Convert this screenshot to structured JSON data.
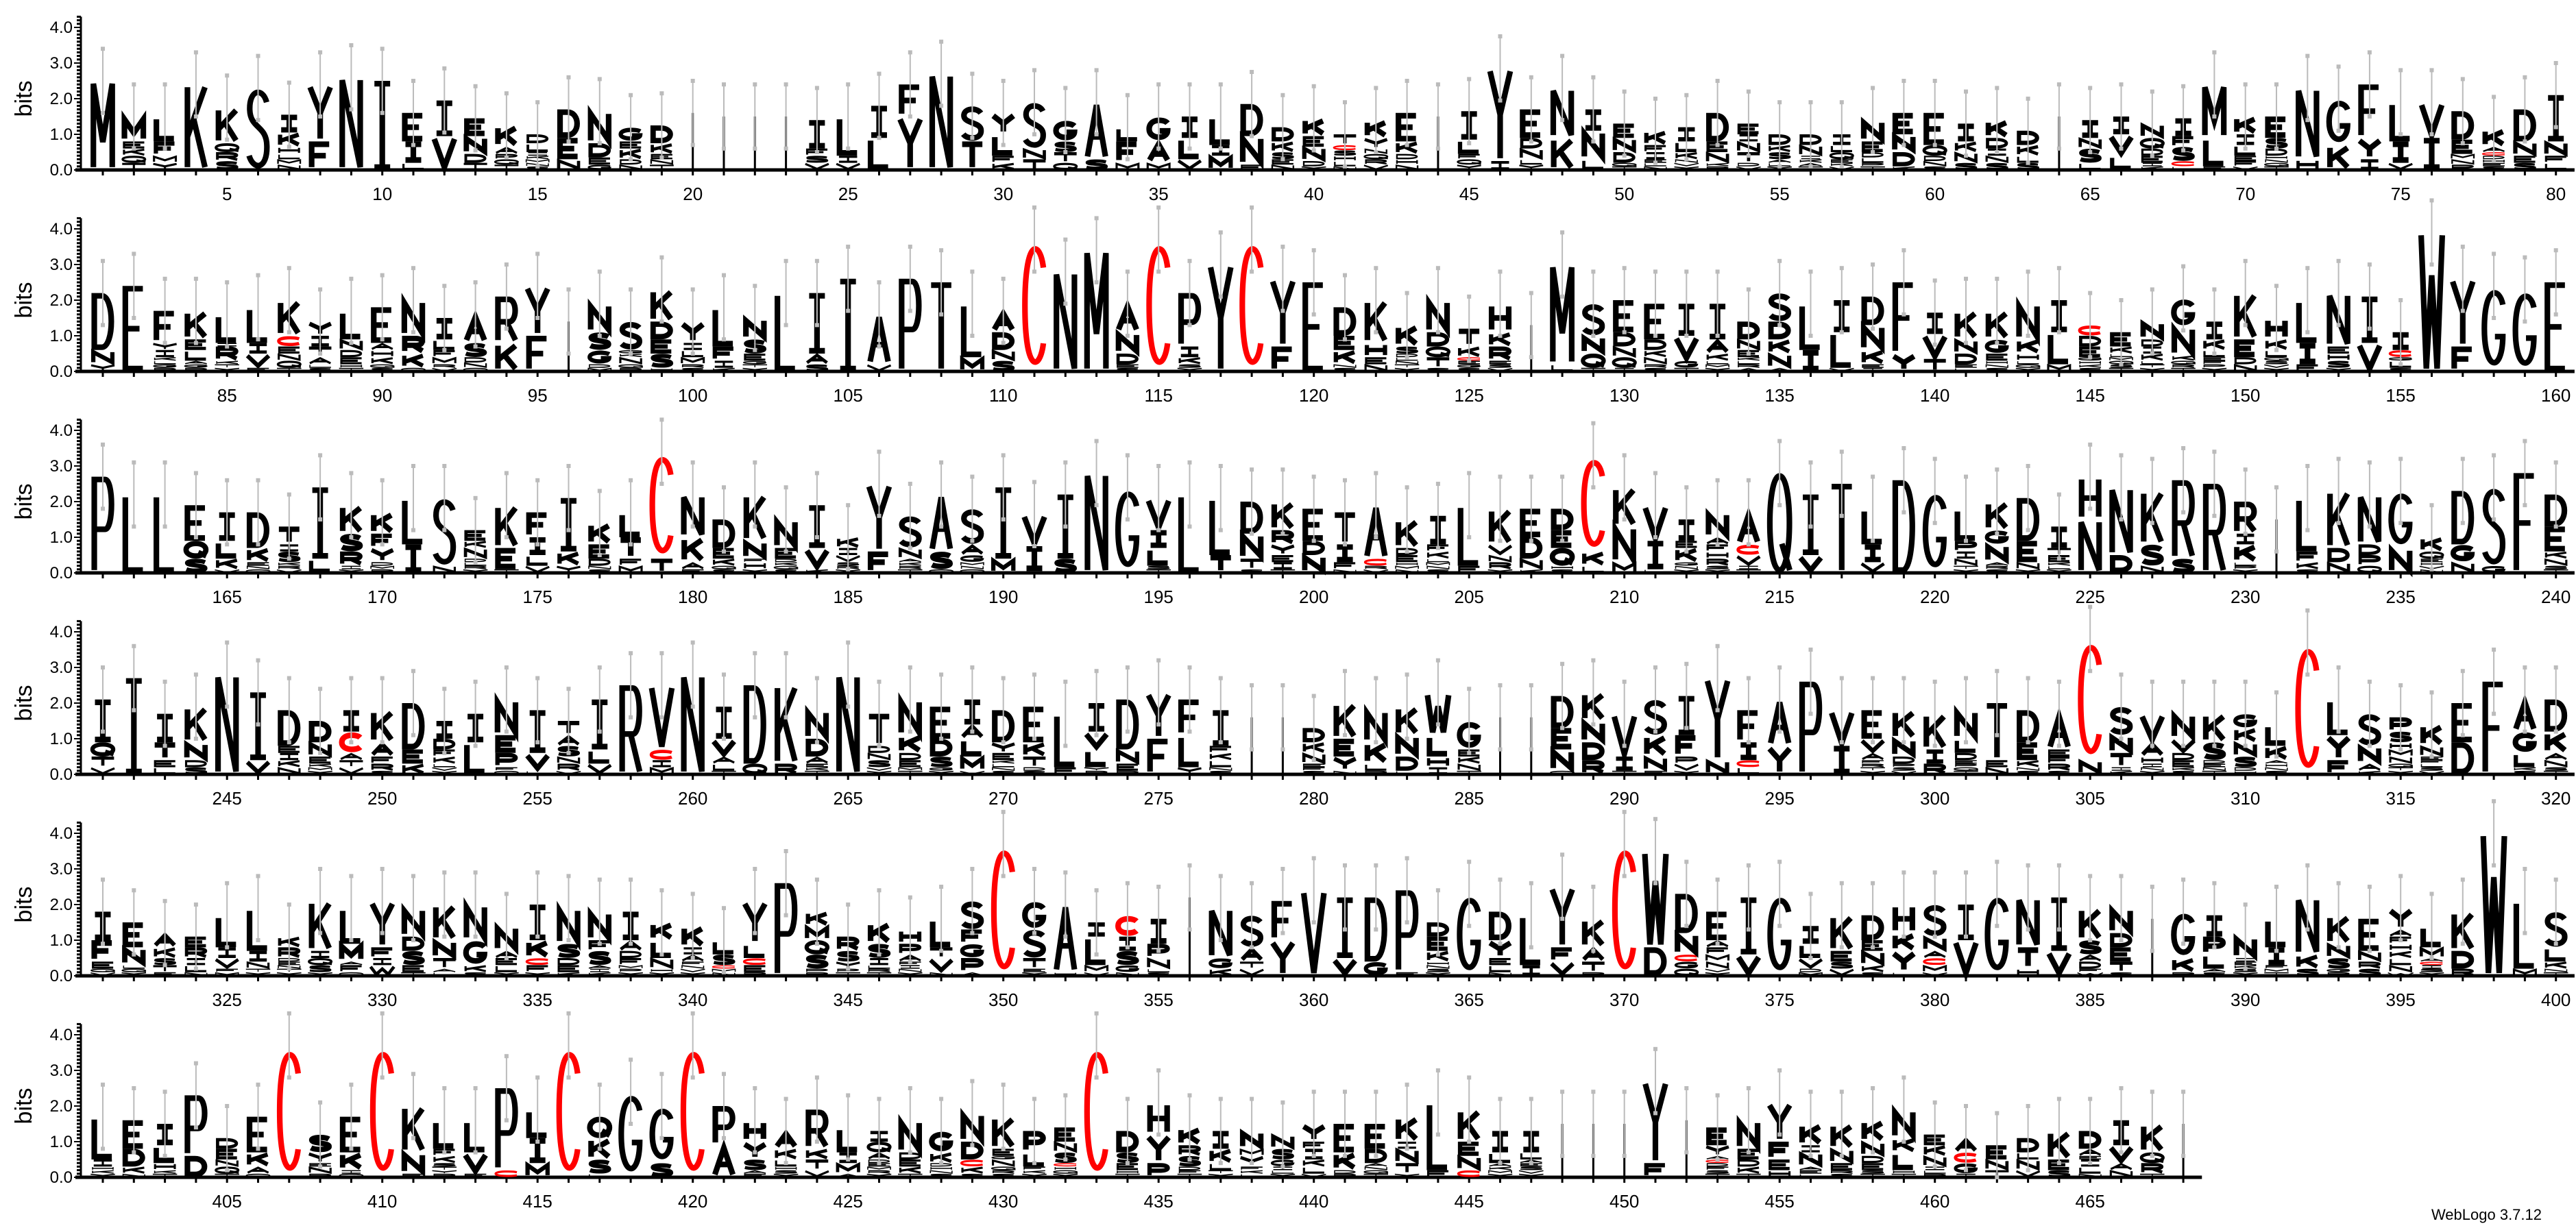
{
  "chart_data": {
    "type": "sequence-logo",
    "ylabel": "bits",
    "ylim": [
      0,
      4.3
    ],
    "yticks": [
      "0.0",
      "1.0",
      "2.0",
      "3.0",
      "4.0"
    ],
    "xtick_interval": 5,
    "colors": {
      "C": "#ff0000",
      "default": "#000000",
      "error_bar": "#bbbbbb"
    },
    "rows": [
      {
        "start": 1,
        "stacks": [
          "M2.5",
          "M.7 E.2 K.2 Q.2 T.2",
          "L.7 F.4 M.2 Y.2",
          "K2.4",
          "K1 Q.25 R.25 S.25",
          "S2.3",
          "I.5 K.4 H.2 L.15 M.15 N.15",
          "Y1.6 F.8",
          "N2.6",
          "I2.5",
          "E.8 I.6 L.2",
          "I1 V.95",
          "E.5 N.5 D.25 T.2",
          "K.6 A.2 P.15 Q.15 T.15",
          "D.25 L.25 I.1 K.1 M.1 N.1 S.1",
          "D.8 E.6 N.3",
          "N.9 D.4 E.2 G.15",
          "G.4 E.2 K.3 D.15 N.15",
          "D.5 K.3 E.15 N.15 T.15",
          "|1.6",
          "|1.5",
          "|1.5",
          "|1.5",
          "I.8 F.2 S.2 V.2",
          "L1.1 I.2 V.2",
          "I.9 L.9",
          "F.9 Y1.5",
          "N2.7",
          "S1 T.8",
          "Y.6 L.6 F.2 K.2",
          "S1.3 N.3 T.3",
          "G.6 S.3 T.3 Q.2",
          "A1.6 S.3",
          "L.4 F.6 M.2",
          "G.7 A.6 M.2",
          "I.6 L.6 V.3",
          "L.8 I.3 M.4",
          "D.9 N.8 E.15",
          "D.4 K.3 S.2 E.15 N.15",
          "K.5 E.3 N.4 D.15 Y.1",
          "T.3 C.15 S.15 H.15 L.15 N.1",
          "K.5 Y.3 N.15 Q.15 R.15 V.15",
          "E.8 K.35 D.15 H.15 N.15",
          "|1.5",
          "I.8 L.4 F.15 Q.15 Y.15",
          "Y2.6 I.25",
          "E.8 D.3 N.3 L.15 Y.15",
          "N1.4 K.9",
          "I.6 N.8 L.3",
          "E.4 N.4 D.3 Q.1 T.1",
          "K.4 F.2 I.2 E.1 L.1 N.1",
          "I.4 L.3 K.2 N.1 V.1 Y.1",
          "D.8 E.3 N.3 K.1 P.1",
          "E.3 I.2 N.3 T.3 D.1 V.1",
          "D.3 K.2 S.2 A.1 L.1 Y.1",
          "D.3 N.3 I.1 K.1 A.1 T.1",
          "I.3 L.2 Q.2 E.1 K.1 V.1",
          "N.6 E.3 D.15 L.15 P.1 T.1",
          "E.6 N.5 D.4 K.1",
          "E.9 Q.3 D.15 N.15 S.1",
          "I.5 K.3 N.3 S.2",
          "K.5 D.3 I.2 N.2 S.2",
          "D.4 K.3 L.2 S.2",
          "|1.5",
          "I.5 N.3 S.4 L.2",
          "I.5 V.6 L.4",
          "N.4 Q.3 D.2 E.2 I.1 K.1",
          "I.5 F.3 S.4 C.15 L.1",
          "M1.5 L.8 F.1",
          "K.5 I.3 L.3 E.15 F.15 V.1",
          "E.6 S.3 D.2 H.1 N.1 Q.1 T.1",
          "N2 H.3",
          "G1.3 K.7",
          "F1.5 Y.6 I.3",
          "L1.1 I.6 V.2",
          "V1 I.9",
          "D.8 E.4 M.15 N.15 P.15",
          "K.5 A.15 C.1 D.1 H.1 E.1 S.1",
          "D.9 N.4 E.2 S.2",
          "I1.3 N.4 F.2 L.2"
        ]
      },
      {
        "start": 81,
        "stacks": [
          "D1.6 N.4 Y.2",
          "E2.4",
          "F.9 Y.2 I.2 K.1 L.1 G.1 R.1",
          "K.8 E.3 L.3 A.1 G.1 R.1",
          "L.8 I.1 R.4 K.1 T.1 Y.1",
          "L1 I.3 V.4 E.1",
          "K1 C.3 E.2 N.2 Q.2 T.1",
          "Y.4 I.3 T.3 A.2 L.1 S.1",
          "L.8 N.3 D.2 E.2 H.1 T.1",
          "E1 A.2 H.2 K.2 Q.1 S.1",
          "N1 R.5 K.4 Q.1",
          "I.6 L.3 F.2 M.2 R.1 V.1",
          "A.8 S.4 D.15 N.15 Q.1",
          "R1.3 K.8",
          "Y1.4 F1",
          "|1.4",
          "N.8 S.5 G.4 D.1 M.1",
          "S.8 G.1 K.1 N.2 Q.1 R.1",
          "K.9 D.5 E.4 S.4 H.1",
          "Y.6 I.2 L.2 M.2 R.1 S.1",
          "L1.1 F.4 I.2 K.1",
          "N.6 S.4 E.2 G.1 T.1 Y.1",
          "L2.2",
          "I1.7 A.3 S.2",
          "I2.6",
          "A1.4 V.2",
          "P2.6",
          "T2.5",
          "L1.5 M.4",
          "A.6 D.5 N.3 S.3",
          "C3.7",
          "N2.8",
          "M3.4",
          "A.8 N.6 D.3 E.1 S.1",
          "C3.7",
          "P1.5 I.3 K.2 S.1 Y.1",
          "Y3",
          "C3.7",
          "Y1.9 F.7",
          "E2.5",
          "D.8 E.4 K.4 N.1 S.1",
          "K1.2 H.4 E.2 N.2",
          "K.6 S.2 D.1 L.1 N.1 T.1 Y.1",
          "N.9 D.4 Q.3 T.3 S.1",
          "T.5 K.3 C.1 E.1 G.1 S.1",
          "H.8 K.4 R.4 E.1 S.1 V.1",
          "|1.3",
          "M2.8 L.2",
          "S.9 N.5 Q.4 T.1",
          "E.9 D.4 N.3 Q.3 I.1",
          "E1 D.3 K.2 N.2 R.1 S.1",
          "I.9 V.7 G.2 T.1",
          "I1 A.4 K.2 L.1 M.1 Y.1",
          "D.5 N.3 E.2 K.1 L.1 R.1 A.1",
          "S.8 D.5 K.4 N.4 A.1",
          "L1.3 I.6",
          "I.9 L1 V.1",
          "D.8 N.7 K.4 E.1 I.1",
          "F2 Y.5",
          "I.6 V.7 T.35",
          "K.8 N.4 D.3 E.1 L.1",
          "K.8 G.4 E.2 H.1 N.1 S.1",
          "N1 K.4 H.2 L.1 Q.1 Y.1",
          "I.9 L.9 M.2",
          "C.3 D.3 E.3 G.1 H.1 K.1 S.1",
          "E.4 K.2 L.1 M.1 Q.1 S.1 T.1",
          "N.5 D.2 I.2 K.2 L.1 T.1 Y.1",
          "G.8 N.8 K.15 Q.1 R.1 T.1",
          "I.5 K.3 L.2 E.1 F.1 P.1 Y.1",
          "K1.3 E.5 D.2 N.2",
          "H.6 K.3 L.2 Q.1 S.1 V.1 Y.1",
          "L1.2 I.6 F.2",
          "N1.5 E.2 H.2 S.2 Y.1",
          "I1.3 V.8",
          "I.5 C.2 G.1 L.2 S.1",
          "W3.9",
          "Y1.9 F.7",
          "G2.4",
          "G2.3",
          "E2.5"
        ]
      },
      {
        "start": 161,
        "stacks": [
          "P2.7",
          "L2.2",
          "L2.2",
          "E1 Q.5 S.4",
          "I.8 L.5 K.3 V.1",
          "D1 K.4 E.1 N.1 Q.1",
          "T.5 I.2 S.3 K.1 R.1 V.1",
          "I2 L.4",
          "K.8 S.5 R.4 I.1 Y.1",
          "K.6 F.4 Y.4 D.1 M.1 R.1",
          "L1.3 I.8",
          "S1.9 N.2",
          "E.3 K.2 N.3 D.1 L.1 R.1 Y.1",
          "K1.2 E.6 T.1",
          "F.7 I.5 L.3 V.2",
          "I1.5 K.4 Y.2",
          "K.6 E.4 D.2 N.1 S.1",
          "L.7 T.6 F.2 M.2",
          "C3 T.4",
          "N1.2 K.7 A.2 E.1",
          "D.8 E.3 K.2 Q.1 S.1",
          "K1.3 N.5 F.1 H.2 Y.1",
          "N.8 E.3 D.1 K.1 Q.1 S.1",
          "I1.2 V.6 K.1",
          "K.3 I.2 V.2 S.1 R.1 Y.1",
          "Y1.9 F.6",
          "S.9 N.3 A.1 K.1 R.1 T.1",
          "A1.6 S.5 Q.1",
          "S1 A.3 G.2 M.1 N.1 Q.1",
          "I2 M.4",
          "V.9 I.7 L.05",
          "I1.8 S.4",
          "N2.8",
          "G2.4",
          "V.9 I.5 L.5 S.1 T.1",
          "L2.2",
          "L1.6 T.5",
          "D.9 N.7 T.3 S.1",
          "K.8 R.4 Y.3 E.2 I.2 T.1",
          "E.9 D.4 N.5",
          "T.9 I.5 F.2 N.1",
          "A1.5 C.2 R.1 V.1",
          "K.8 D.2 E.2 H.1 M.1 N.1",
          "I.8 F.2 K.2 L.1 M.1 N.1 S.1",
          "L1.7 F.2",
          "K1 V.3 N.2 R.2 Y.1",
          "E.8 D.6 N.3 K.1",
          "D.6 E.5 Q.5 H.1 S.1",
          "C2.7 K.4 L.2",
          "K1.1 N1 M.3",
          "V1 I.8 L.1",
          "I.6 E.2 K.4 G.1 N.1 Y.1",
          "N.7 A.2 F.2 H.2 R.2 S.1 Y.1",
          "A.9 C.3 V.3 I.1 T.1",
          "Q2.8",
          "I1.7 V.5",
          "T2.5",
          "L1 I.5 V.3",
          "D2.6",
          "G2.3",
          "L.9 P.3 I.2 N.2 T.1 Y.1",
          "K.8 G.4 N.5 A.1 R.1 S.1",
          "D1.2 E.6 N.2 Y.1",
          "I.6 T.2 E.2 K.1 L.1 Y.1",
          "H1.2 N1.5",
          "N1.9 D.5",
          "K1.5 S.6 N.2",
          "R2.2 S.4",
          "R2.5",
          "R.9 I.3 K.5 L.1 P.1 Y.1",
          "|1.5",
          "L1.5 F.3 K.2 S.1",
          "K1.6 D.4 N.3",
          "N1.4 D.3 P.3 Q.2",
          "G1.6 N.7",
          "K.4 Q.2 E.1 H.1 V.1 N.1",
          "D1.5 G.5 N.3",
          "S2.2 G.2",
          "F2.8",
          "D.9 E.7 K.2 N.2 S.1 T.1"
        ]
      },
      {
        "start": 241,
        "stacks": [
          "I1.2 Q.4 T.3 V.2",
          "I2.7",
          "I.8 T.5 E.2 L.2",
          "K1 N.5 D.2 S.2",
          "N2.8",
          "I1.9 V.4",
          "D1 E.2 I.2 K.2 N.2",
          "D.6 N.4 E.2 K.1 M.1 Y.1",
          "I.6 C.6 A.2 T.2 V.2",
          "K.9 A.4 F.2 R.2 S.1",
          "D1.3 E.4 K.3",
          "I.5 D.3 F.2 K.2 L.1 V.1 Y.1",
          "I.8 L.9",
          "N1 E.5 P.4 F.1 Q.1",
          "I1.2 V.5 L.1",
          "T.4 A.3 S.3 N.2 R.2 V.1",
          "I1.4 L.4 V.3",
          "R2.5",
          "V1.8 C.3 I.2 M.2",
          "N2.8",
          "I.9 V.5 A.2 L.2 T.1",
          "D2.2 Q.3",
          "K2.2 R.3",
          "N.8 D.5 A.2 E.1 K.1 T.1",
          "N2.8",
          "T.9 D.2 N.2 S.2 V.1 Y.1",
          "N1 K.5 D.2 E.2 M.1 T.1",
          "E.9 D.5 S.3 G.1 Y.1",
          "I.7 A.4 L.5 M.4 V.1",
          "D.9 Y.3 E.2 K.1 L.1 N.1 S.1",
          "E1 K.4 T.3 D.1 S.1",
          "L1.5 F.2",
          "I.8 V.5 L.5 Y.1 R.1",
          "D1.4 N.4 E.2 R.1",
          "Y1.3 F1",
          "F1 L.9 Y.2",
          "I1 F.2 K.2 L.2 N.1 S.1",
          "|1.6",
          "|1.6",
          "D.4 K.3 N.3 E.1 F.1 S.1",
          "K1 E.5 Y.4 N.1",
          "N.9 K.6 L.2 R.1",
          "K.8 N.6 D.4 L.1",
          "W1.2 L.6 H.3 I.2",
          "G.8 E.2 K.2 N.2 T.1",
          "|1.6",
          "|1.6",
          "D.9 E.6 N.6 Q.1",
          "K.8 N.6 D.5 R.4",
          "V1.2 I.4 T.1",
          "S1 K.6 N.4 F.1",
          "I1.1 F.6 P.2 V.2 Y.1",
          "Y2.3 N.4",
          "F.9 I.5 C.2 L.2",
          "A1.3 Y.8",
          "P2.6",
          "V1 I.8",
          "E.8 V.4 A.2 F.1 R.1 T.1 Y.1",
          "K.8 N.5 D.2 P.1 S.1 V.1",
          "K1 I.4 R.3",
          "N.8 L.4 D.2 E.1 P.1 Q.1 T.1",
          "T1.6 E.2 N.2",
          "D.9 E.5 K.2 N.1 S.1",
          "A1 E.2 F.2 R.2 S.1",
          "C3.4 N.4",
          "S.8 N.5 T.4 I.1 K.1",
          "V.8 A.4 H.2 I.1 N.1 Y.1",
          "N.7 V.4 D.2 E.2 K.1 S.1",
          "K.8 S.5 D.1 E.1 N.1 T.1",
          "G.4 K.4 N.4 S.3 D.1 H.1",
          "L.6 K.4 A.1 H.1 N.1 S.1",
          "C3.7",
          "L1 Y.7 F.4",
          "S.9 N.5 A.2 K.1",
          "P.4 S.3 H.2 M.2 N.2 Q.1 T.1 Y.1",
          "K.6 N.3 E.1 F.1 L.1 S.1 V.1",
          "E1.1 D.9",
          "F2.6",
          "A.9 G.6 L.4 K.1 S.1",
          "D.9 K.6 A.2 N.2 S.1 T.1"
        ]
      },
      {
        "start": 321,
        "stacks": [
          "I.8 F.6 E.2 Q.1 V.1",
          "E.7 N.5 L.1 Q.1 Y.1",
          "A.4 K.3 S.2 T.2 E.1",
          "E.3 R.3 I.2 L.2 N.1",
          "L.9 I.3 V.3 F.1 M.1",
          "L1.2 I.3 N.2 T.1 Y.1",
          "K.3 R.3 D.1 E.1 N.1 T.1 Y.1",
          "K1.4 I.2 Q.2 S.2 Y.1",
          "L1 M.5 A.1 F.2 Q.1",
          "Y1.3 F.3 I.2 W.3",
          "N.8 D.4 S.4 E.2 T.1",
          "K1 N.5 T.3 A.1 L.1",
          "N1 G.7 K.2 S.1",
          "N.7 A.2 E.2 L.2 Y.1",
          "I1 K.5 C.2 F.2 Y.1",
          "N1 S.4 D.2 E.2 K.1",
          "N.8 F.3 S.4 A.1 I.1 K.1",
          "I.8 A.3 D.2 F.2 M.1 P.1 Y.1",
          "K.5 L.5 N.3 H.1 Y.1",
          "K.6 I.2 A.2 F.1 N.1 V.1 Y.1",
          "L.4 S.3 C.1 M.1 N.1",
          "Y1.2 L.4 C.2 E.2 R.1",
          "P2.6",
          "K.4 M.4 Q.4 S.4 P.1 R.1",
          "R.4 S.3 Y.2 P.1 T.1",
          "K.6 S.4 I.2 L.1 R.1 T.1",
          "H.4 P.3 A.2 F.1 I.1 N.1 Y.1",
          "L.8 T.3 V.4 N.1",
          "S.8 F.4 G.4 P.4 A.1",
          "C3.7",
          "G.8 S.8 T.3 E.1 Y.1",
          "A1.9 H.1",
          "I.4 L.8 M.2 V.1",
          "C.6 I.4 S.4 G.2 N.1",
          "I.7 P.4 N.3 L.1 S.1",
          "|2.2",
          "N1.4 G.3 K.2",
          "S.9 A.4 T.2 V.2",
          "F1.1 Y1",
          "V2.4",
          "I1.7 V.5",
          "D1.8 G.4",
          "P2.3 E.1",
          "D.4 E.4 K.3 H.1 N.1 S.1 Y.1",
          "G2.3",
          "D.8 Y.5 E.2 L.2 N.1",
          "L1.4 I.3",
          "Y1.7 F.4 V.4",
          "K.8 A.4 T.3 P.1",
          "C3.7",
          "W2.7 D.8",
          "D1.1 N.6 C.2 G.2 Q.2",
          "E.8 A.2 F.2 M.2 N.2 V.1 Y.1",
          "I1.6 V.6",
          "G2.3",
          "I.5 L.4 V.3 D.1 M.1",
          "K1 E.3 S.2 V.2",
          "D.7 E.3 N.4 K.2 S.1",
          "H.8 K.5 Y.6 L.1",
          "S.9 N.4 A.2 C.2 M.2 V.1",
          "I1 V1",
          "G2.3",
          "N1.4 T.6 H.2",
          "I1.5 V.7",
          "K.9 S.4 A.2 D.2 F.1 W.1",
          "N.7 D.4 E.4 T.3 S.1",
          "|1.6",
          "G1.3 K.4 R.1",
          "I.6 P.5 L.4 A.1 S.1",
          "N.6 I.1 E.1 K.1 S.1 Y.1",
          "L.8 I.5 F.1 M.1 T.1",
          "N1.6 K.4 S.2",
          "K.8 N.4 S.3 G.1 P.1",
          "E.9 N.3 R.2 S.2",
          "Y.6 A.2 F.2 H.2 K.2 L.2 N.2 W.1",
          "L.6 M.3 A.1 C.1 I.1 S.1 Y.1",
          "K1.1 D.5 R.2",
          "W4",
          "L1.9 M.2",
          "S1 L.4 K.2 N.1 T.1"
        ]
      },
      {
        "start": 401,
        "stacks": [
          "L1.2 I.2 H.1 K.1 Y.1",
          "E.8 D.5 K.2 N.1",
          "I.6 L.5 H.2 K.1 T.1",
          "P1.7 D.6",
          "D.3 E.3 N.2 Q.2 T.1",
          "E1 K.4 A.2 Q.1",
          "C3.7",
          "S.5 Y.3 E.1 N.2 R.1",
          "E1 K.5 I.1 Q.1",
          "C3.7",
          "K1.3 N.6 E.1",
          "L.8 F.2 K.2 S.1 T.1 Y.1 R.1",
          "L.9 V.6 F.1",
          "P2.3 C.2",
          "L.8 I.7 M.4",
          "C3.7",
          "Q.6 K.6 S.4 L.1",
          "G2.4",
          "G1.6 S.4",
          "C3.7",
          "P1.1 A.9",
          "H.6 Y.5 S.3 A.1 F.1",
          "A.5 K.3 L.2 H.1 S.1 Y.1",
          "R1.1 K.3 T.3 V.2",
          "L.7 I.3 M.3 A.1",
          "I.3 Q.3 A.2 D.1 E.1 M.1 R.1 Y.1",
          "N.9 D.2 E.2 K.2 T.1",
          "G.6 K.3 D.1 H.1 N.1 S.1",
          "N.8 D.5 C.2 K.2 S.1",
          "K.9 E.2 G.1 N.2 Q.1 R.1 S.1",
          "P.6 L.4 F.1 K.1 Y.1",
          "E.4 N.3 S.3 C.1 H.1 Q.1 Y.1",
          "C3.7",
          "D.6 S.3 E.2 H.1 T.1",
          "H.9 Y.8 P.4",
          "K.5 R.3 S.3 D.1 F.1 T.1",
          "I.5 K.4 L.2 T.1 Y.1",
          "N.5 M.2 Y.3 F.1 K.1 L.1",
          "N.4 S.3 G.2 I.1 L.1 Y.1",
          "Y.5 F.2 I.3 K.2 L.2 V.1",
          "E.8 K.5 D.1 P.1",
          "E.7 D.4 A.1 N.1 Q.1 T.1",
          "K.7 I.2 N.4 T.3 Y.1",
          "L1.9 F.2",
          "K.9 E.4 N.4 C.2",
          "I.6 L.3 A.1 K.1 M.1 Y.1",
          "I.6 L.2 A.1 E.1 S.1 V.1 Y.1",
          "|1.5",
          "|1.5",
          "|1.5",
          "Y2.3 F.4",
          "|1.6",
          "E.5 Y.3 A.1 C.1 D.1 F.1 S.1 T.1",
          "N.8 E.3 D.2 K.2 T.1",
          "Y1.1 F.5 E.3 H.2",
          "K.6 I.2 N.4 A.1 E.1 L.1",
          "K.7 N.4 E.2 R.1 S.1",
          "K.6 N.4 D.2 E.2 S.1 T.1",
          "N.8 K.4 L.5 H.1 T.1",
          "E.3 K.3 N.3 I.1 L.1 R.1",
          "A.4 C.3 G.3 I.1",
          "E.4 N.3 T.2",
          "D.4 L.2 N.3 V.2",
          "K.8 E.3 S.2",
          "D.5 A.2 E.1 I.2 L.2 N.1",
          "I.7 V.5 A.2 N.2",
          "K.8 Q.3 R.3 T.1",
          "|1.5"
        ]
      }
    ]
  },
  "footer": "WebLogo 3.7.12"
}
